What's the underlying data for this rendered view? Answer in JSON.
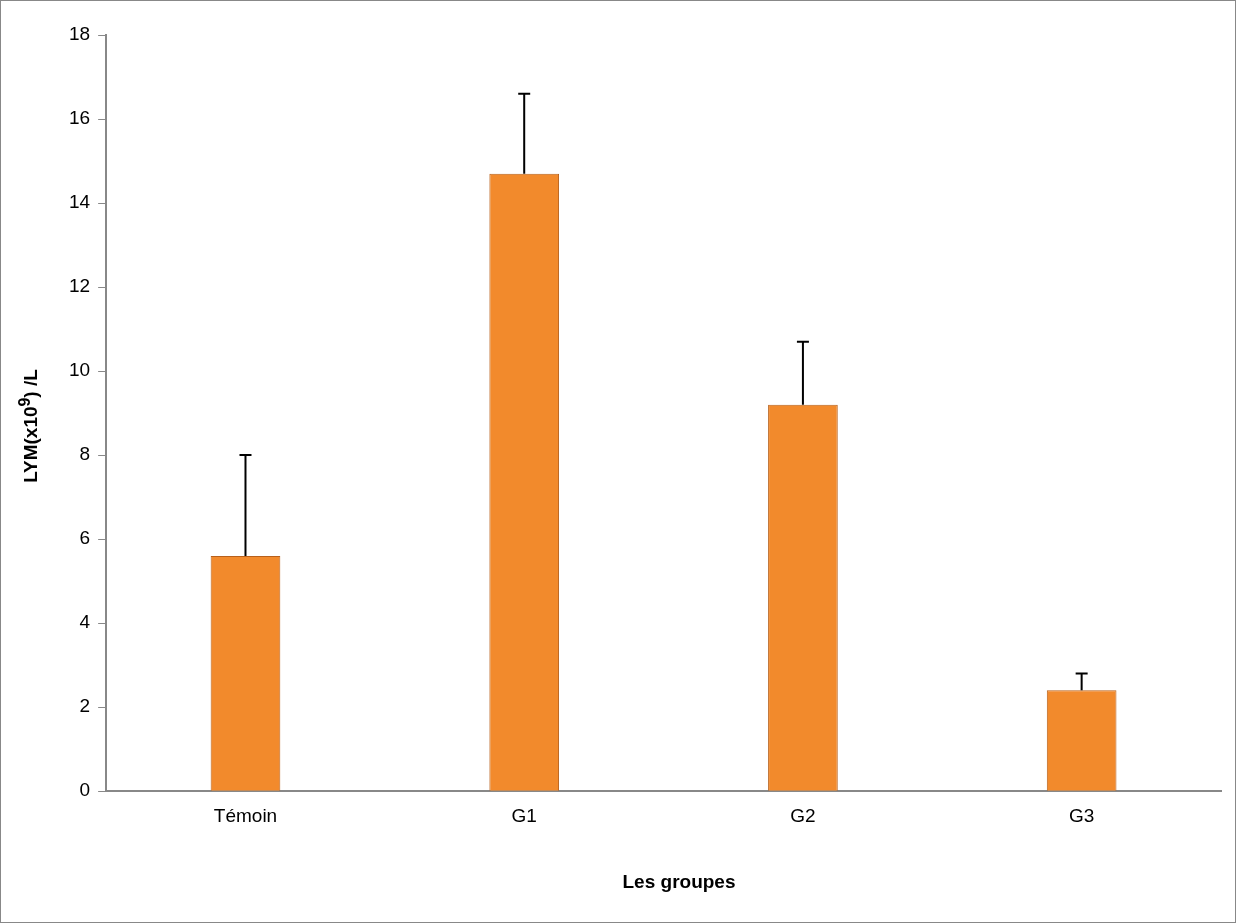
{
  "chart_data": {
    "type": "bar",
    "xlabel": "Les groupes",
    "ylabel": "LYM(x10$^{9}$) /L",
    "categories": [
      "Témoin",
      "G1",
      "G2",
      "G3"
    ],
    "values": [
      5.6,
      14.7,
      9.2,
      2.4
    ],
    "errors": [
      [
        5.6,
        8.0
      ],
      [
        14.7,
        16.6
      ],
      [
        9.2,
        10.7
      ],
      [
        2.4,
        2.8
      ]
    ],
    "color": "#f28a2c",
    "ylim": [
      0,
      18
    ],
    "yticks": [
      0,
      2,
      4,
      6,
      8,
      10,
      12,
      14,
      16,
      18
    ],
    "grid": false,
    "legend": false
  }
}
